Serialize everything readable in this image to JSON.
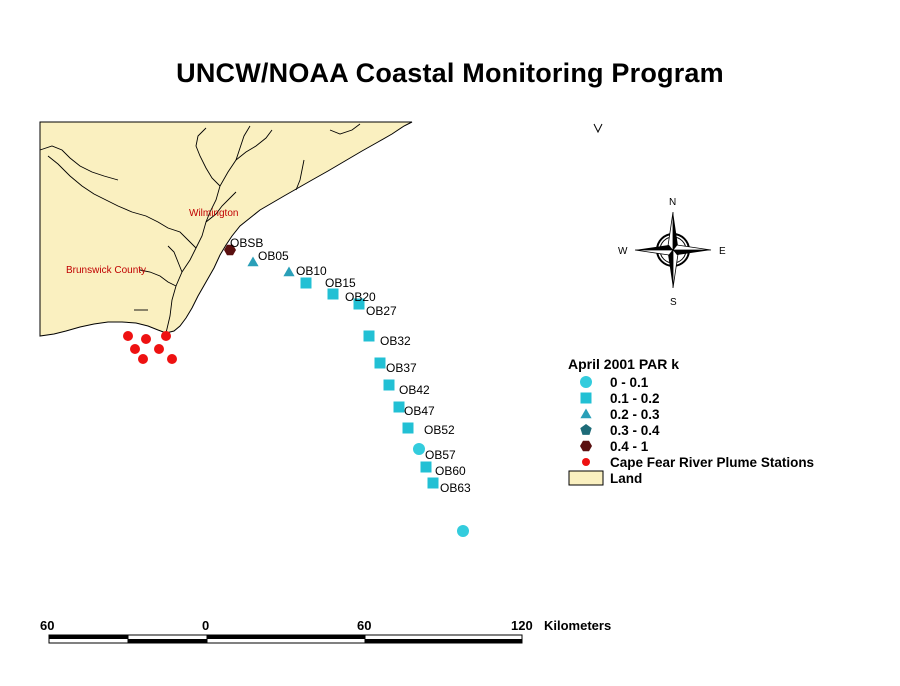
{
  "title": "UNCW/NOAA Coastal Monitoring Program",
  "places": {
    "wilmington": "Wilmington",
    "brunswick": "Brunswick County"
  },
  "compass": {
    "n": "N",
    "s": "S",
    "e": "E",
    "w": "W"
  },
  "legend": {
    "title": "April 2001 PAR k",
    "items": [
      {
        "label": "0 - 0.1",
        "symbol": "circle",
        "color": "#33ccdd"
      },
      {
        "label": "0.1 - 0.2",
        "symbol": "square",
        "color": "#22c0d4"
      },
      {
        "label": "0.2 - 0.3",
        "symbol": "triangle",
        "color": "#2a9fb8"
      },
      {
        "label": "0.3 - 0.4",
        "symbol": "pentagon",
        "color": "#1d6b78"
      },
      {
        "label": "0.4 - 1",
        "symbol": "hexagon",
        "color": "#5a1010"
      },
      {
        "label": "Cape Fear River Plume Stations",
        "symbol": "dot",
        "color": "#ee1111"
      },
      {
        "label": "Land",
        "symbol": "box",
        "color": "#faf0c0"
      }
    ]
  },
  "stations": [
    {
      "name": "OBSB",
      "class": "0.4 - 1"
    },
    {
      "name": "OB05",
      "class": "0.2 - 0.3"
    },
    {
      "name": "OB10",
      "class": "0.2 - 0.3"
    },
    {
      "name": "OB15",
      "class": "0.1 - 0.2"
    },
    {
      "name": "OB20",
      "class": "0.1 - 0.2"
    },
    {
      "name": "OB27",
      "class": "0.1 - 0.2"
    },
    {
      "name": "OB32",
      "class": "0.1 - 0.2"
    },
    {
      "name": "OB37",
      "class": "0.1 - 0.2"
    },
    {
      "name": "OB42",
      "class": "0.1 - 0.2"
    },
    {
      "name": "OB47",
      "class": "0.1 - 0.2"
    },
    {
      "name": "OB52",
      "class": "0.1 - 0.2"
    },
    {
      "name": "OB57",
      "class": "0 - 0.1"
    },
    {
      "name": "OB60",
      "class": "0.1 - 0.2"
    },
    {
      "name": "OB63",
      "class": "0.1 - 0.2"
    },
    {
      "name": "",
      "class": "0 - 0.1"
    }
  ],
  "scale": {
    "labels": [
      "60",
      "0",
      "60",
      "120"
    ],
    "unit": "Kilometers"
  }
}
